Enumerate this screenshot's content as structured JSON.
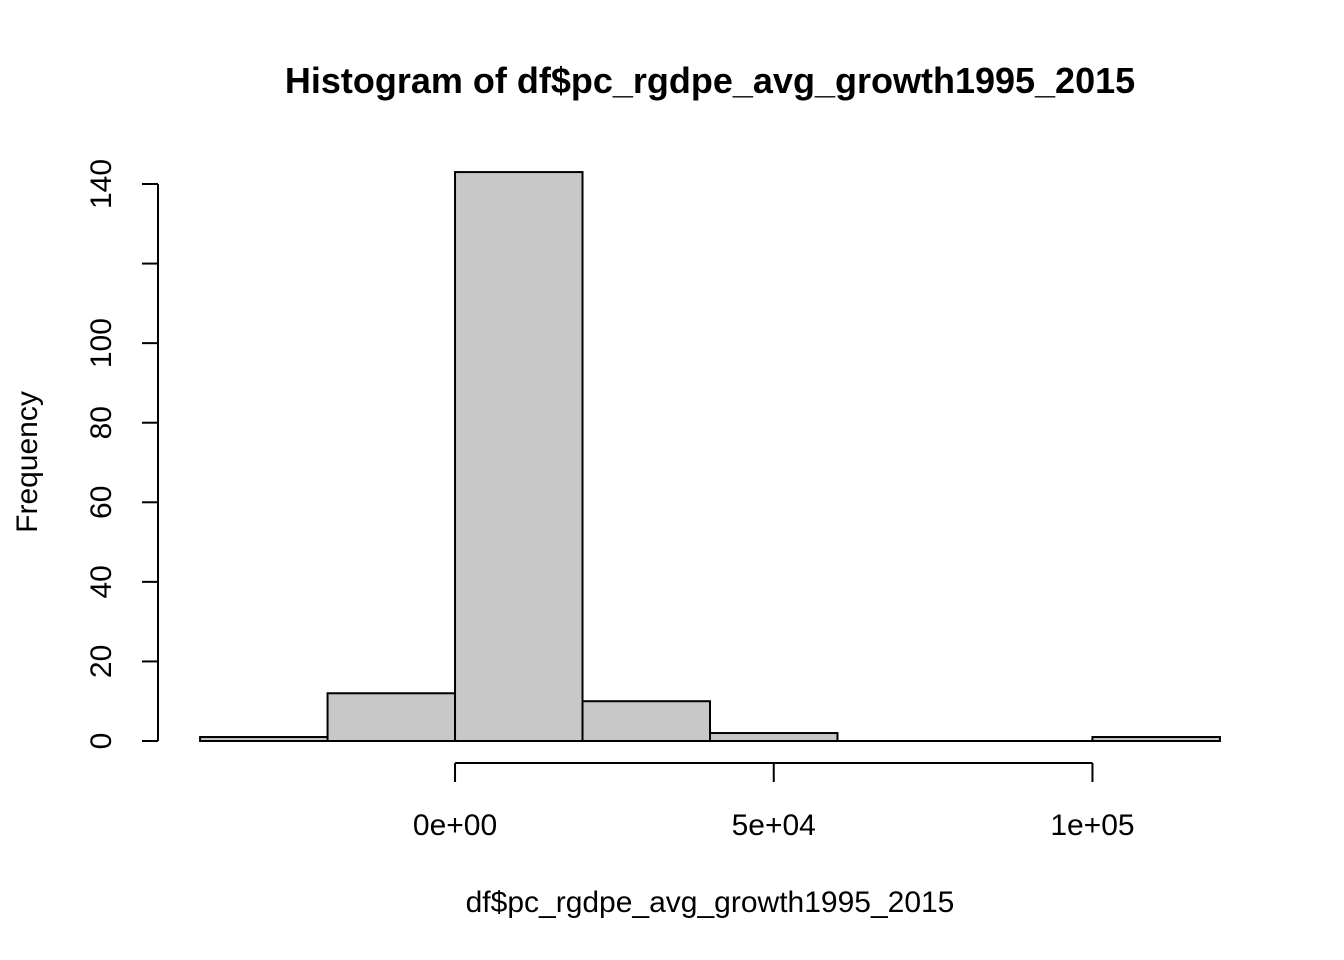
{
  "chart_data": {
    "type": "bar",
    "title": "Histogram of df$pc_rgdpe_avg_growth1995_2015",
    "xlabel": "df$pc_rgdpe_avg_growth1995_2015",
    "ylabel": "Frequency",
    "bin_edges": [
      -40000,
      -20000,
      0,
      20000,
      40000,
      60000,
      80000,
      100000,
      120000
    ],
    "values": [
      1,
      12,
      143,
      10,
      2,
      0,
      0,
      1
    ],
    "bar_fill": "#c8c8c8",
    "bar_stroke": "#000000",
    "xlim": [
      -46600,
      126600
    ],
    "ylim": [
      0,
      140
    ],
    "x_ticks": [
      {
        "value": 0,
        "label": "0e+00"
      },
      {
        "value": 50000,
        "label": "5e+04"
      },
      {
        "value": 100000,
        "label": "1e+05"
      }
    ],
    "y_ticks": [
      {
        "value": 0,
        "label": "0"
      },
      {
        "value": 20,
        "label": "20"
      },
      {
        "value": 40,
        "label": "40"
      },
      {
        "value": 60,
        "label": "60"
      },
      {
        "value": 80,
        "label": "80"
      },
      {
        "value": 100,
        "label": "100"
      },
      {
        "value": 120,
        "label": ""
      },
      {
        "value": 140,
        "label": "140"
      }
    ],
    "grid": false,
    "legend": "none"
  }
}
